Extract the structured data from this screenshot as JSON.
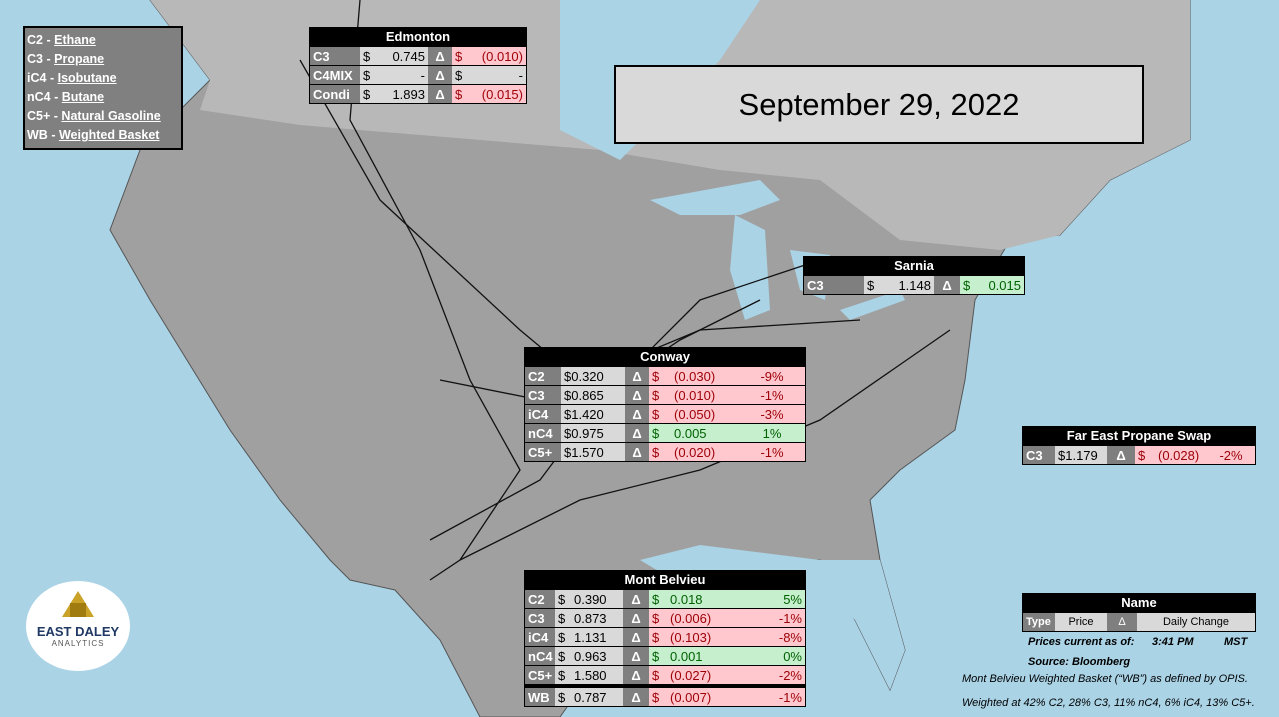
{
  "legend": {
    "separator": "-",
    "items": [
      {
        "code": "C2",
        "name": "Ethane"
      },
      {
        "code": "C3",
        "name": "Propane"
      },
      {
        "code": "iC4",
        "name": "Isobutane"
      },
      {
        "code": "nC4",
        "name": "Butane"
      },
      {
        "code": "C5+",
        "name": "Natural Gasoline"
      },
      {
        "code": "WB",
        "name": "Weighted Basket"
      }
    ]
  },
  "date": "September 29, 2022",
  "tables": [
    {
      "title": "Edmonton",
      "rows": [
        {
          "cells": [
            "C3",
            "$",
            "0.745",
            "Δ",
            "$",
            "(0.010)"
          ],
          "fill": "#ffc7ce"
        },
        {
          "cells": [
            "C4MIX",
            "$",
            "-",
            "Δ",
            "$",
            "-"
          ]
        },
        {
          "cells": [
            "Condi",
            "$",
            "1.893",
            "Δ",
            "$",
            "(0.015)"
          ],
          "fill": "#ffc7ce"
        }
      ]
    },
    {
      "title": "Sarnia",
      "rows": [
        {
          "cells": [
            "C3",
            "$",
            "1.148",
            "Δ",
            "$",
            "0.015"
          ],
          "fill": "#c6efce"
        }
      ]
    },
    {
      "title": "Conway",
      "rows": [
        {
          "cells": [
            "C2",
            "$0.320",
            "Δ",
            "$",
            "(0.030)",
            "-9%"
          ],
          "fill": "#ffc7ce"
        },
        {
          "cells": [
            "C3",
            "$0.865",
            "Δ",
            "$",
            "(0.010)",
            "-1%"
          ],
          "fill": "#ffc7ce"
        },
        {
          "cells": [
            "iC4",
            "$1.420",
            "Δ",
            "$",
            "(0.050)",
            "-3%"
          ],
          "fill": "#ffc7ce"
        },
        {
          "cells": [
            "nC4",
            "$0.975",
            "Δ",
            "$",
            "0.005",
            "1%"
          ],
          "fill": "#c6efce"
        },
        {
          "cells": [
            "C5+",
            "$1.570",
            "Δ",
            "$",
            "(0.020)",
            "-1%"
          ],
          "fill": "#ffc7ce"
        }
      ]
    },
    {
      "title": "Far East Propane Swap",
      "rows": [
        {
          "cells": [
            "C3",
            "$1.179",
            "Δ",
            "$",
            "(0.028)",
            "-2%"
          ],
          "fill": "#ffc7ce"
        }
      ]
    },
    {
      "title": "Mont Belvieu",
      "rows": [
        {
          "cells": [
            "C2",
            "$",
            "0.390",
            "Δ",
            "$",
            "0.018",
            "5%"
          ],
          "fill": "#c6efce"
        },
        {
          "cells": [
            "C3",
            "$",
            "0.873",
            "Δ",
            "$",
            "(0.006)",
            "-1%"
          ],
          "fill": "#ffc7ce"
        },
        {
          "cells": [
            "iC4",
            "$",
            "1.131",
            "Δ",
            "$",
            "(0.103)",
            "-8%"
          ],
          "fill": "#ffc7ce"
        },
        {
          "cells": [
            "nC4",
            "$",
            "0.963",
            "Δ",
            "$",
            "0.001",
            "0%"
          ],
          "fill": "#c6efce"
        },
        {
          "cells": [
            "C5+",
            "$",
            "1.580",
            "Δ",
            "$",
            "(0.027)",
            "-2%"
          ],
          "fill": "#ffc7ce"
        },
        {
          "cells": [
            "WB",
            "$",
            "0.787",
            "Δ",
            "$",
            "(0.007)",
            "-1%"
          ],
          "fill": "#ffc7ce"
        }
      ]
    }
  ],
  "key": {
    "title": "Name",
    "cells": [
      "Type",
      "Price",
      "Δ",
      "Daily Change"
    ]
  },
  "notes": {
    "prices_label": "Prices current as of:",
    "time": "3:41 PM",
    "zone": "MST",
    "source": "Source: Bloomberg",
    "basket": "Mont Belvieu Weighted Basket (“WB”) as defined by OPIS.",
    "weights": "Weighted at 42% C2, 28% C3, 11% nC4, 6% iC4, 13% C5+."
  },
  "logo": {
    "name": "EAST DALEY",
    "sub": "ANALYTICS"
  }
}
